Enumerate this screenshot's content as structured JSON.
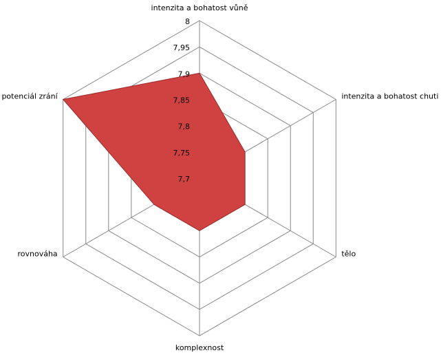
{
  "chart_data": {
    "type": "radar",
    "categories": [
      "intenzita a bohatost vůně",
      "intenzita a bohatost chuti",
      "tělo",
      "komplexnost",
      "rovnováha",
      "potenciál zrání"
    ],
    "series": [
      {
        "values": [
          7.9,
          7.8,
          7.8,
          7.8,
          7.8,
          8
        ],
        "color": "#d04242"
      }
    ],
    "ylim": [
      7.7,
      8
    ],
    "yticks": [
      {
        "value": 7.7,
        "label": "7,7"
      },
      {
        "value": 7.75,
        "label": "7,75"
      },
      {
        "value": 7.8,
        "label": "7,8"
      },
      {
        "value": 7.85,
        "label": "7,85"
      },
      {
        "value": 7.9,
        "label": "7,9"
      },
      {
        "value": 7.95,
        "label": "7,95"
      },
      8
    ],
    "grid": true
  }
}
